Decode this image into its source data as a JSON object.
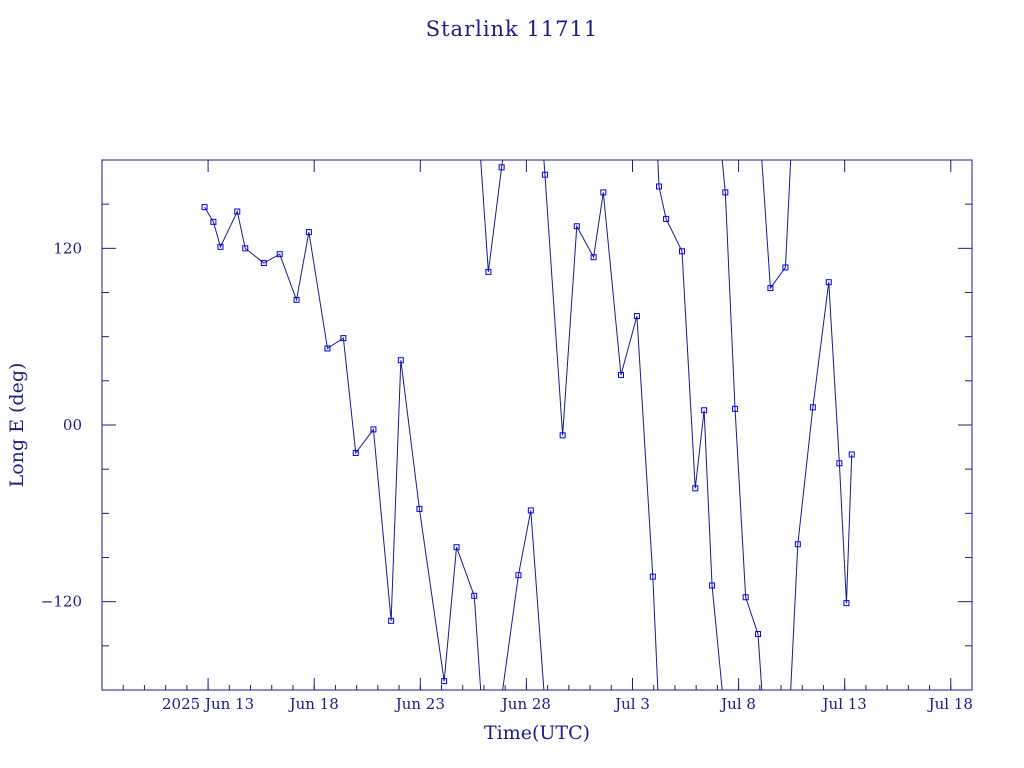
{
  "chart_data": {
    "type": "line",
    "title": "Starlink 11711",
    "xlabel": "Time(UTC)",
    "ylabel": "Long E (deg)",
    "x_date_range": [
      "2025-06-08",
      "2025-07-19"
    ],
    "ylim": [
      -180,
      180
    ],
    "x_ticks": [
      {
        "date": "2025-06-13",
        "label": "2025 Jun 13"
      },
      {
        "date": "2025-06-18",
        "label": "Jun 18"
      },
      {
        "date": "2025-06-23",
        "label": "Jun 23"
      },
      {
        "date": "2025-06-28",
        "label": "Jun 28"
      },
      {
        "date": "2025-07-03",
        "label": "Jul  3"
      },
      {
        "date": "2025-07-08",
        "label": "Jul  8"
      },
      {
        "date": "2025-07-13",
        "label": "Jul 13"
      },
      {
        "date": "2025-07-18",
        "label": "Jul 18"
      }
    ],
    "y_ticks": [
      {
        "value": 120,
        "label": "120"
      },
      {
        "value": 0,
        "label": "00"
      },
      {
        "value": -120,
        "label": "−120"
      }
    ],
    "series": [
      {
        "marker": "square",
        "color": "#1a1a8c",
        "x": [
          "2025-06-12 20:00",
          "2025-06-13 06:00",
          "2025-06-13 14:00",
          "2025-06-14 09:00",
          "2025-06-14 18:00",
          "2025-06-15 15:00",
          "2025-06-16 09:00",
          "2025-06-17 04:00",
          "2025-06-17 18:00",
          "2025-06-18 15:00",
          "2025-06-19 09:00",
          "2025-06-19 23:00",
          "2025-06-20 19:00",
          "2025-06-21 15:00",
          "2025-06-22 02:00",
          "2025-06-22 23:00",
          "2025-06-24 03:00",
          "2025-06-24 17:00",
          "2025-06-25 13:00",
          "2025-06-26 05:00",
          "2025-06-26 20:00",
          "2025-06-27 15:00",
          "2025-06-28 05:00",
          "2025-06-28 21:00",
          "2025-06-29 17:00",
          "2025-06-30 09:00",
          "2025-07-01 04:00",
          "2025-07-01 15:00",
          "2025-07-02 11:00",
          "2025-07-03 05:00",
          "2025-07-03 23:00",
          "2025-07-04 06:00",
          "2025-07-04 14:00",
          "2025-07-05 08:00",
          "2025-07-05 23:00",
          "2025-07-06 09:00",
          "2025-07-06 18:00",
          "2025-07-07 09:00",
          "2025-07-07 20:00",
          "2025-07-08 08:00",
          "2025-07-08 22:00",
          "2025-07-09 12:00",
          "2025-07-10 05:00",
          "2025-07-10 19:00",
          "2025-07-11 12:00",
          "2025-07-12 06:00",
          "2025-07-12 18:00",
          "2025-07-13 02:00",
          "2025-07-13 08:00"
        ],
        "y": [
          148,
          138,
          121,
          145,
          120,
          110,
          116,
          85,
          131,
          52,
          59,
          -19,
          -3,
          -133,
          44,
          -57,
          -174,
          -83,
          -116,
          104,
          175,
          -102,
          -58,
          170,
          -7,
          135,
          114,
          158,
          34,
          74,
          -103,
          162,
          140,
          118,
          -43,
          10,
          -109,
          158,
          11,
          -117,
          -142,
          93,
          107,
          -81,
          12,
          97,
          -26,
          -121,
          -20
        ]
      }
    ]
  }
}
